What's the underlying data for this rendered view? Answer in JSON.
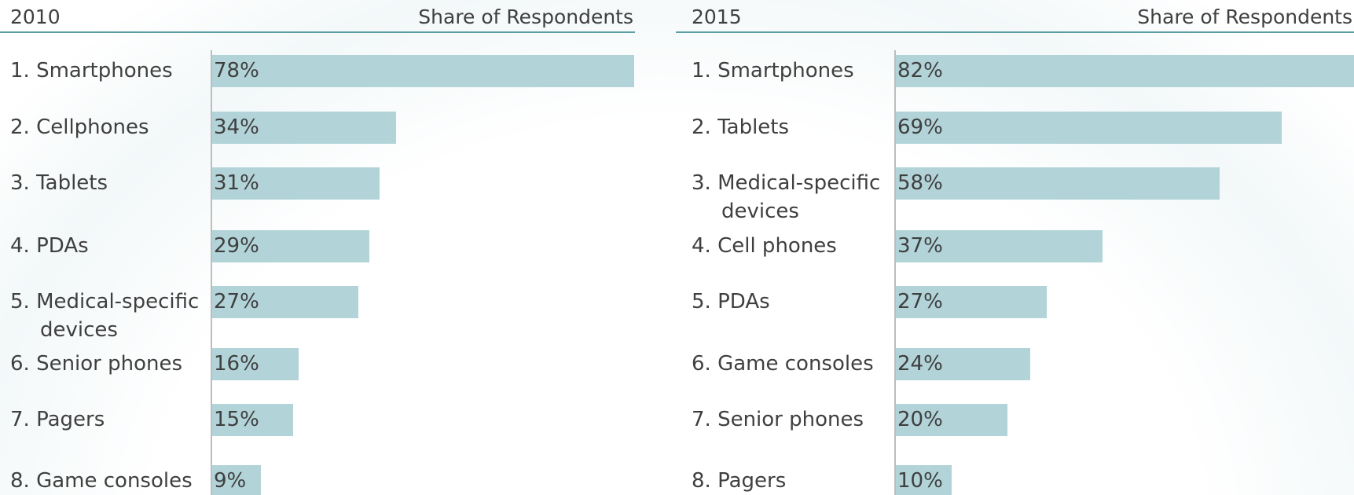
{
  "chart_data": [
    {
      "type": "bar",
      "orientation": "horizontal",
      "title": "2010",
      "x_label": "Share of Respondents",
      "categories": [
        "1. Smartphones",
        "2. Cellphones",
        "3. Tablets",
        "4. PDAs",
        "5. Medical-specific devices",
        "6. Senior phones",
        "7. Pagers",
        "8. Game consoles"
      ],
      "values": [
        78,
        34,
        31,
        29,
        27,
        16,
        15,
        9
      ],
      "value_labels": [
        "78%",
        "34%",
        "31%",
        "29%",
        "27%",
        "16%",
        "15%",
        "9%"
      ],
      "color": "#b2d3d8",
      "xlim": [
        0,
        78
      ]
    },
    {
      "type": "bar",
      "orientation": "horizontal",
      "title": "2015",
      "x_label": "Share of Respondents",
      "categories": [
        "1. Smartphones",
        "2. Tablets",
        "3. Medical-specific devices",
        "4. Cell phones",
        "5. PDAs",
        "6. Game consoles",
        "7. Senior phones",
        "8. Pagers"
      ],
      "values": [
        82,
        69,
        58,
        37,
        27,
        24,
        20,
        10
      ],
      "value_labels": [
        "82%",
        "69%",
        "58%",
        "37%",
        "27%",
        "24%",
        "20%",
        "10%"
      ],
      "color": "#b2d3d8",
      "xlim": [
        0,
        82
      ]
    }
  ]
}
